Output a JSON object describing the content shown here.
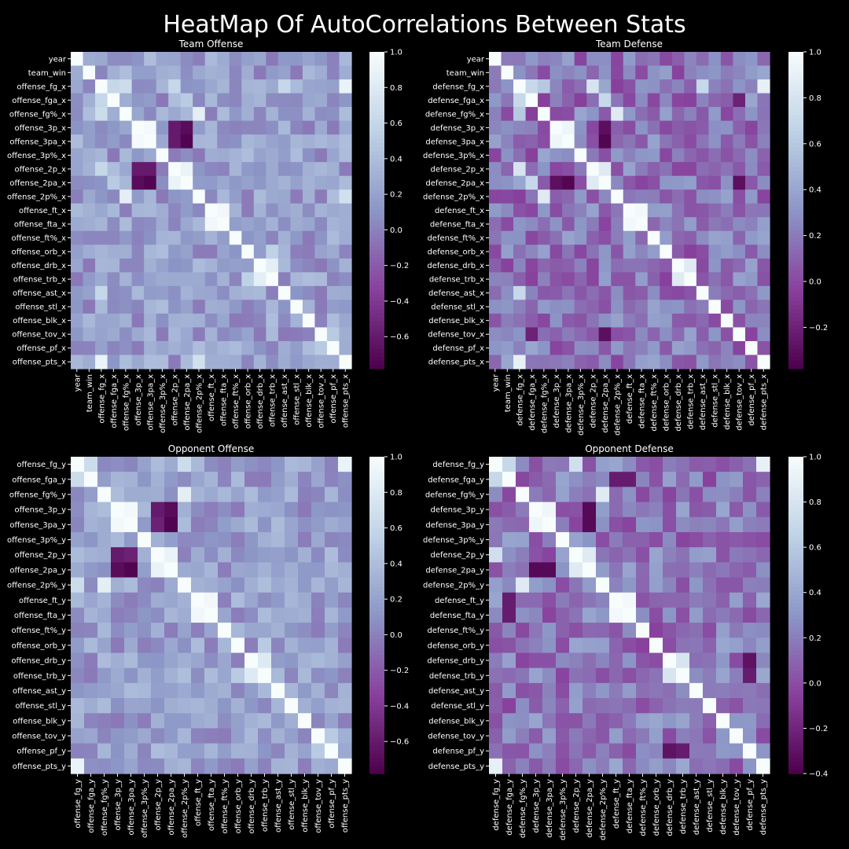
{
  "title": "HeatMap Of AutoCorrelations Between Stats",
  "colors": {
    "low": "#4d004b",
    "mid1": "#88419d",
    "mid2": "#8c96c6",
    "mid3": "#bfd3e6",
    "high": "#f7fcfd",
    "background": "#000000",
    "text": "#ffffff"
  },
  "chart_data": [
    {
      "type": "heatmap",
      "title": "Team Offense",
      "labels": [
        "year",
        "team_win",
        "offense_fg_x",
        "offense_fga_x",
        "offense_fg%_x",
        "offense_3p_x",
        "offense_3pa_x",
        "offense_3p%_x",
        "offense_2p_x",
        "offense_2pa_x",
        "offense_2p%_x",
        "offense_ft_x",
        "offense_fta_x",
        "offense_ft%_x",
        "offense_orb_x",
        "offense_drb_x",
        "offense_trb_x",
        "offense_ast_x",
        "offense_stl_x",
        "offense_blk_x",
        "offense_tov_x",
        "offense_pf_x",
        "offense_pts_x"
      ],
      "colorbar_ticks": [
        1.0,
        0.8,
        0.6,
        0.4,
        0.2,
        0.0,
        -0.2,
        -0.4,
        -0.6
      ],
      "vmin": -0.78,
      "vmax": 1.0,
      "strong_pairs": [
        [
          "offense_fg_x",
          "offense_fga_x",
          0.6
        ],
        [
          "offense_fg_x",
          "offense_fg%_x",
          0.65
        ],
        [
          "offense_fg_x",
          "offense_2p_x",
          0.6
        ],
        [
          "offense_fg_x",
          "offense_pts_x",
          0.9
        ],
        [
          "offense_fga_x",
          "offense_2pa_x",
          0.5
        ],
        [
          "offense_fg%_x",
          "offense_2p%_x",
          0.85
        ],
        [
          "offense_3p_x",
          "offense_3pa_x",
          0.98
        ],
        [
          "offense_3p_x",
          "offense_2p_x",
          -0.6
        ],
        [
          "offense_3p_x",
          "offense_2pa_x",
          -0.7
        ],
        [
          "offense_3pa_x",
          "offense_2pa_x",
          -0.75
        ],
        [
          "offense_3pa_x",
          "offense_2p_x",
          -0.6
        ],
        [
          "offense_2p_x",
          "offense_2pa_x",
          0.9
        ],
        [
          "offense_ft_x",
          "offense_fta_x",
          0.95
        ],
        [
          "offense_drb_x",
          "offense_trb_x",
          0.85
        ],
        [
          "offense_orb_x",
          "offense_trb_x",
          0.55
        ],
        [
          "offense_ast_x",
          "offense_fg_x",
          0.6
        ],
        [
          "offense_pts_x",
          "offense_2p%_x",
          0.7
        ],
        [
          "offense_tov_x",
          "offense_pf_x",
          0.5
        ]
      ]
    },
    {
      "type": "heatmap",
      "title": "Team Defense",
      "labels": [
        "year",
        "team_win",
        "defense_fg_x",
        "defense_fga_x",
        "defense_fg%_x",
        "defense_3p_x",
        "defense_3pa_x",
        "defense_3p%_x",
        "defense_2p_x",
        "defense_2pa_x",
        "defense_2p%_x",
        "defense_ft_x",
        "defense_fta_x",
        "defense_ft%_x",
        "defense_orb_x",
        "defense_drb_x",
        "defense_trb_x",
        "defense_ast_x",
        "defense_stl_x",
        "defense_blk_x",
        "defense_tov_x",
        "defense_pf_x",
        "defense_pts_x"
      ],
      "colorbar_ticks": [
        1.0,
        0.8,
        0.6,
        0.4,
        0.2,
        0.0,
        -0.2
      ],
      "vmin": -0.38,
      "vmax": 1.0,
      "strong_pairs": [
        [
          "defense_fg_x",
          "defense_fga_x",
          0.7
        ],
        [
          "defense_fg_x",
          "defense_2p_x",
          0.8
        ],
        [
          "defense_fg_x",
          "defense_pts_x",
          0.9
        ],
        [
          "defense_fg_x",
          "defense_fg%_x",
          0.6
        ],
        [
          "defense_fga_x",
          "defense_2pa_x",
          0.7
        ],
        [
          "defense_fg%_x",
          "defense_2p%_x",
          0.85
        ],
        [
          "defense_3p_x",
          "defense_3pa_x",
          0.95
        ],
        [
          "defense_3pa_x",
          "defense_2pa_x",
          -0.35
        ],
        [
          "defense_3p_x",
          "defense_2pa_x",
          -0.3
        ],
        [
          "defense_2p_x",
          "defense_2pa_x",
          0.85
        ],
        [
          "defense_ft_x",
          "defense_fta_x",
          0.97
        ],
        [
          "defense_drb_x",
          "defense_trb_x",
          0.85
        ],
        [
          "defense_ast_x",
          "defense_fg_x",
          0.7
        ],
        [
          "defense_tov_x",
          "defense_2pa_x",
          -0.3
        ],
        [
          "defense_tov_x",
          "defense_fga_x",
          -0.2
        ]
      ]
    },
    {
      "type": "heatmap",
      "title": "Opponent Offense",
      "labels": [
        "offense_fg_y",
        "offense_fga_y",
        "offense_fg%_y",
        "offense_3p_y",
        "offense_3pa_y",
        "offense_3p%_y",
        "offense_2p_y",
        "offense_2pa_y",
        "offense_2p%_y",
        "offense_ft_y",
        "offense_fta_y",
        "offense_ft%_y",
        "offense_orb_y",
        "offense_drb_y",
        "offense_trb_y",
        "offense_ast_y",
        "offense_stl_y",
        "offense_blk_y",
        "offense_tov_y",
        "offense_pf_y",
        "offense_pts_y"
      ],
      "colorbar_ticks": [
        1.0,
        0.8,
        0.6,
        0.4,
        0.2,
        0.0,
        -0.2,
        -0.4,
        -0.6
      ],
      "vmin": -0.78,
      "vmax": 1.0,
      "strong_pairs": [
        [
          "offense_fg_y",
          "offense_fga_y",
          0.65
        ],
        [
          "offense_fg_y",
          "offense_pts_y",
          0.9
        ],
        [
          "offense_fg_y",
          "offense_2p%_y",
          0.65
        ],
        [
          "offense_fg%_y",
          "offense_2p%_y",
          0.85
        ],
        [
          "offense_3p_y",
          "offense_3pa_y",
          0.97
        ],
        [
          "offense_3p_y",
          "offense_2p_y",
          -0.6
        ],
        [
          "offense_3p_y",
          "offense_2pa_y",
          -0.7
        ],
        [
          "offense_3pa_y",
          "offense_2pa_y",
          -0.75
        ],
        [
          "offense_3pa_y",
          "offense_2p_y",
          -0.55
        ],
        [
          "offense_2p_y",
          "offense_2pa_y",
          0.9
        ],
        [
          "offense_ft_y",
          "offense_fta_y",
          0.95
        ],
        [
          "offense_drb_y",
          "offense_trb_y",
          0.8
        ],
        [
          "offense_orb_y",
          "offense_trb_y",
          0.5
        ],
        [
          "offense_tov_y",
          "offense_pf_y",
          0.5
        ]
      ]
    },
    {
      "type": "heatmap",
      "title": "Opponent Defense",
      "labels": [
        "defense_fg_y",
        "defense_fga_y",
        "defense_fg%_y",
        "defense_3p_y",
        "defense_3pa_y",
        "defense_3p%_y",
        "defense_2p_y",
        "defense_2pa_y",
        "defense_2p%_y",
        "defense_ft_y",
        "defense_fta_y",
        "defense_ft%_y",
        "defense_orb_y",
        "defense_drb_y",
        "defense_trb_y",
        "defense_ast_y",
        "defense_stl_y",
        "defense_blk_y",
        "defense_tov_y",
        "defense_pf_y",
        "defense_pts_y"
      ],
      "colorbar_ticks": [
        1.0,
        0.8,
        0.6,
        0.4,
        0.2,
        0.0,
        -0.2,
        -0.4
      ],
      "vmin": -0.4,
      "vmax": 1.0,
      "strong_pairs": [
        [
          "defense_fg_y",
          "defense_fga_y",
          0.7
        ],
        [
          "defense_fg_y",
          "defense_2p_y",
          0.75
        ],
        [
          "defense_fg_y",
          "defense_pts_y",
          0.9
        ],
        [
          "defense_fg%_y",
          "defense_2p%_y",
          0.85
        ],
        [
          "defense_3p_y",
          "defense_3pa_y",
          0.95
        ],
        [
          "defense_3p_y",
          "defense_2pa_y",
          -0.35
        ],
        [
          "defense_3pa_y",
          "defense_2pa_y",
          -0.35
        ],
        [
          "defense_2p_y",
          "defense_2pa_y",
          0.85
        ],
        [
          "defense_ft_y",
          "defense_fta_y",
          0.97
        ],
        [
          "defense_drb_y",
          "defense_trb_y",
          0.8
        ],
        [
          "defense_pf_y",
          "defense_drb_y",
          -0.3
        ],
        [
          "defense_pf_y",
          "defense_trb_y",
          -0.25
        ],
        [
          "defense_ft_y",
          "defense_fga_y",
          -0.25
        ],
        [
          "defense_fta_y",
          "defense_fga_y",
          -0.25
        ]
      ]
    }
  ]
}
